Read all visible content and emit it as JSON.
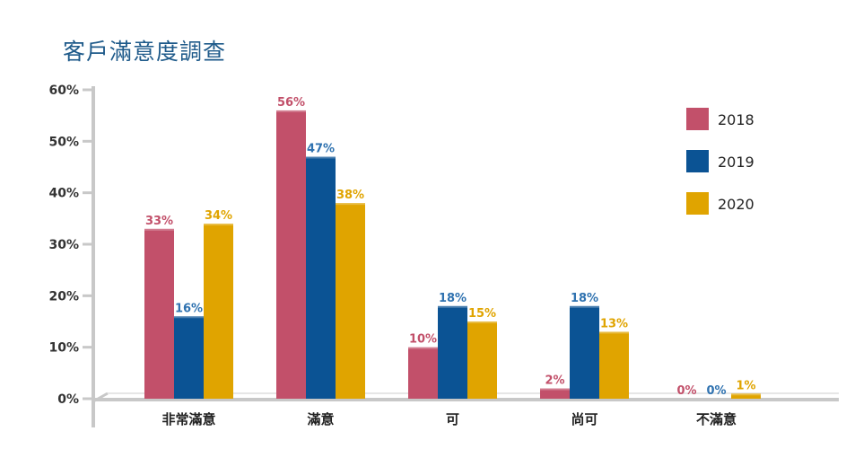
{
  "chart_data": {
    "type": "bar",
    "title": "客戶滿意度調查",
    "categories": [
      "非常滿意",
      "滿意",
      "可",
      "尚可",
      "不滿意"
    ],
    "series": [
      {
        "name": "2018",
        "values": [
          33,
          56,
          10,
          2,
          0
        ],
        "labels": [
          "33%",
          "56%",
          "10%",
          "2%",
          "0%"
        ],
        "color": "#c2506a",
        "label_color": "#c2506a"
      },
      {
        "name": "2019",
        "values": [
          16,
          47,
          18,
          18,
          0
        ],
        "labels": [
          "16%",
          "47%",
          "18%",
          "18%",
          "0%"
        ],
        "color": "#0b5394",
        "label_color": "#2f72b0"
      },
      {
        "name": "2020",
        "values": [
          34,
          38,
          15,
          13,
          1
        ],
        "labels": [
          "34%",
          "38%",
          "15%",
          "13%",
          "1%"
        ],
        "color": "#e0a400",
        "label_color": "#e0a400"
      }
    ],
    "y_ticks": [
      "0%",
      "10%",
      "20%",
      "30%",
      "40%",
      "50%",
      "60%"
    ],
    "ylim": [
      0,
      60
    ],
    "grid": false,
    "legend_position": "top-right",
    "axis_color": "#c8c8c8"
  }
}
